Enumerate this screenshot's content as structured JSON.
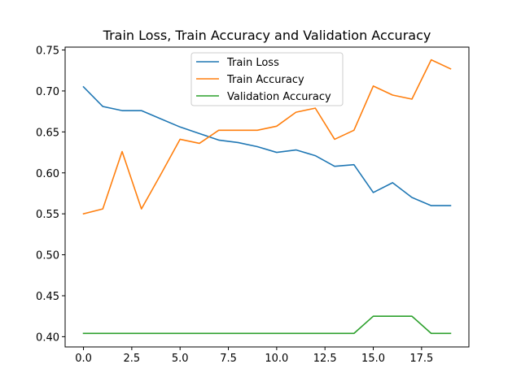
{
  "chart_data": {
    "type": "line",
    "title": "Train Loss, Train Accuracy and Validation Accuracy",
    "xlabel": "",
    "ylabel": "",
    "xlim": [
      -0.95,
      19.95
    ],
    "ylim": [
      0.3875,
      0.7535
    ],
    "grid": false,
    "legend_position": "upper-center",
    "x_ticks": [
      0.0,
      2.5,
      5.0,
      7.5,
      10.0,
      12.5,
      15.0,
      17.5
    ],
    "x_tick_labels": [
      "0.0",
      "2.5",
      "5.0",
      "7.5",
      "10.0",
      "12.5",
      "15.0",
      "17.5"
    ],
    "y_ticks": [
      0.4,
      0.45,
      0.5,
      0.55,
      0.6,
      0.65,
      0.7,
      0.75
    ],
    "y_tick_labels": [
      "0.40",
      "0.45",
      "0.50",
      "0.55",
      "0.60",
      "0.65",
      "0.70",
      "0.75"
    ],
    "x": [
      0,
      1,
      2,
      3,
      4,
      5,
      6,
      7,
      8,
      9,
      10,
      11,
      12,
      13,
      14,
      15,
      16,
      17,
      18,
      19
    ],
    "series": [
      {
        "name": "Train Loss",
        "color": "#1f77b4",
        "values": [
          0.705,
          0.681,
          0.676,
          0.676,
          0.666,
          0.656,
          0.648,
          0.64,
          0.637,
          0.632,
          0.625,
          0.628,
          0.621,
          0.608,
          0.61,
          0.576,
          0.588,
          0.57,
          0.56,
          0.56
        ]
      },
      {
        "name": "Train Accuracy",
        "color": "#ff7f0e",
        "values": [
          0.55,
          0.556,
          0.626,
          0.556,
          0.598,
          0.641,
          0.636,
          0.652,
          0.652,
          0.652,
          0.657,
          0.674,
          0.679,
          0.641,
          0.652,
          0.706,
          0.695,
          0.69,
          0.738,
          0.727
        ]
      },
      {
        "name": "Validation Accuracy",
        "color": "#2ca02c",
        "values": [
          0.404,
          0.404,
          0.404,
          0.404,
          0.404,
          0.404,
          0.404,
          0.404,
          0.404,
          0.404,
          0.404,
          0.404,
          0.404,
          0.404,
          0.404,
          0.425,
          0.425,
          0.425,
          0.404,
          0.404
        ]
      }
    ]
  }
}
